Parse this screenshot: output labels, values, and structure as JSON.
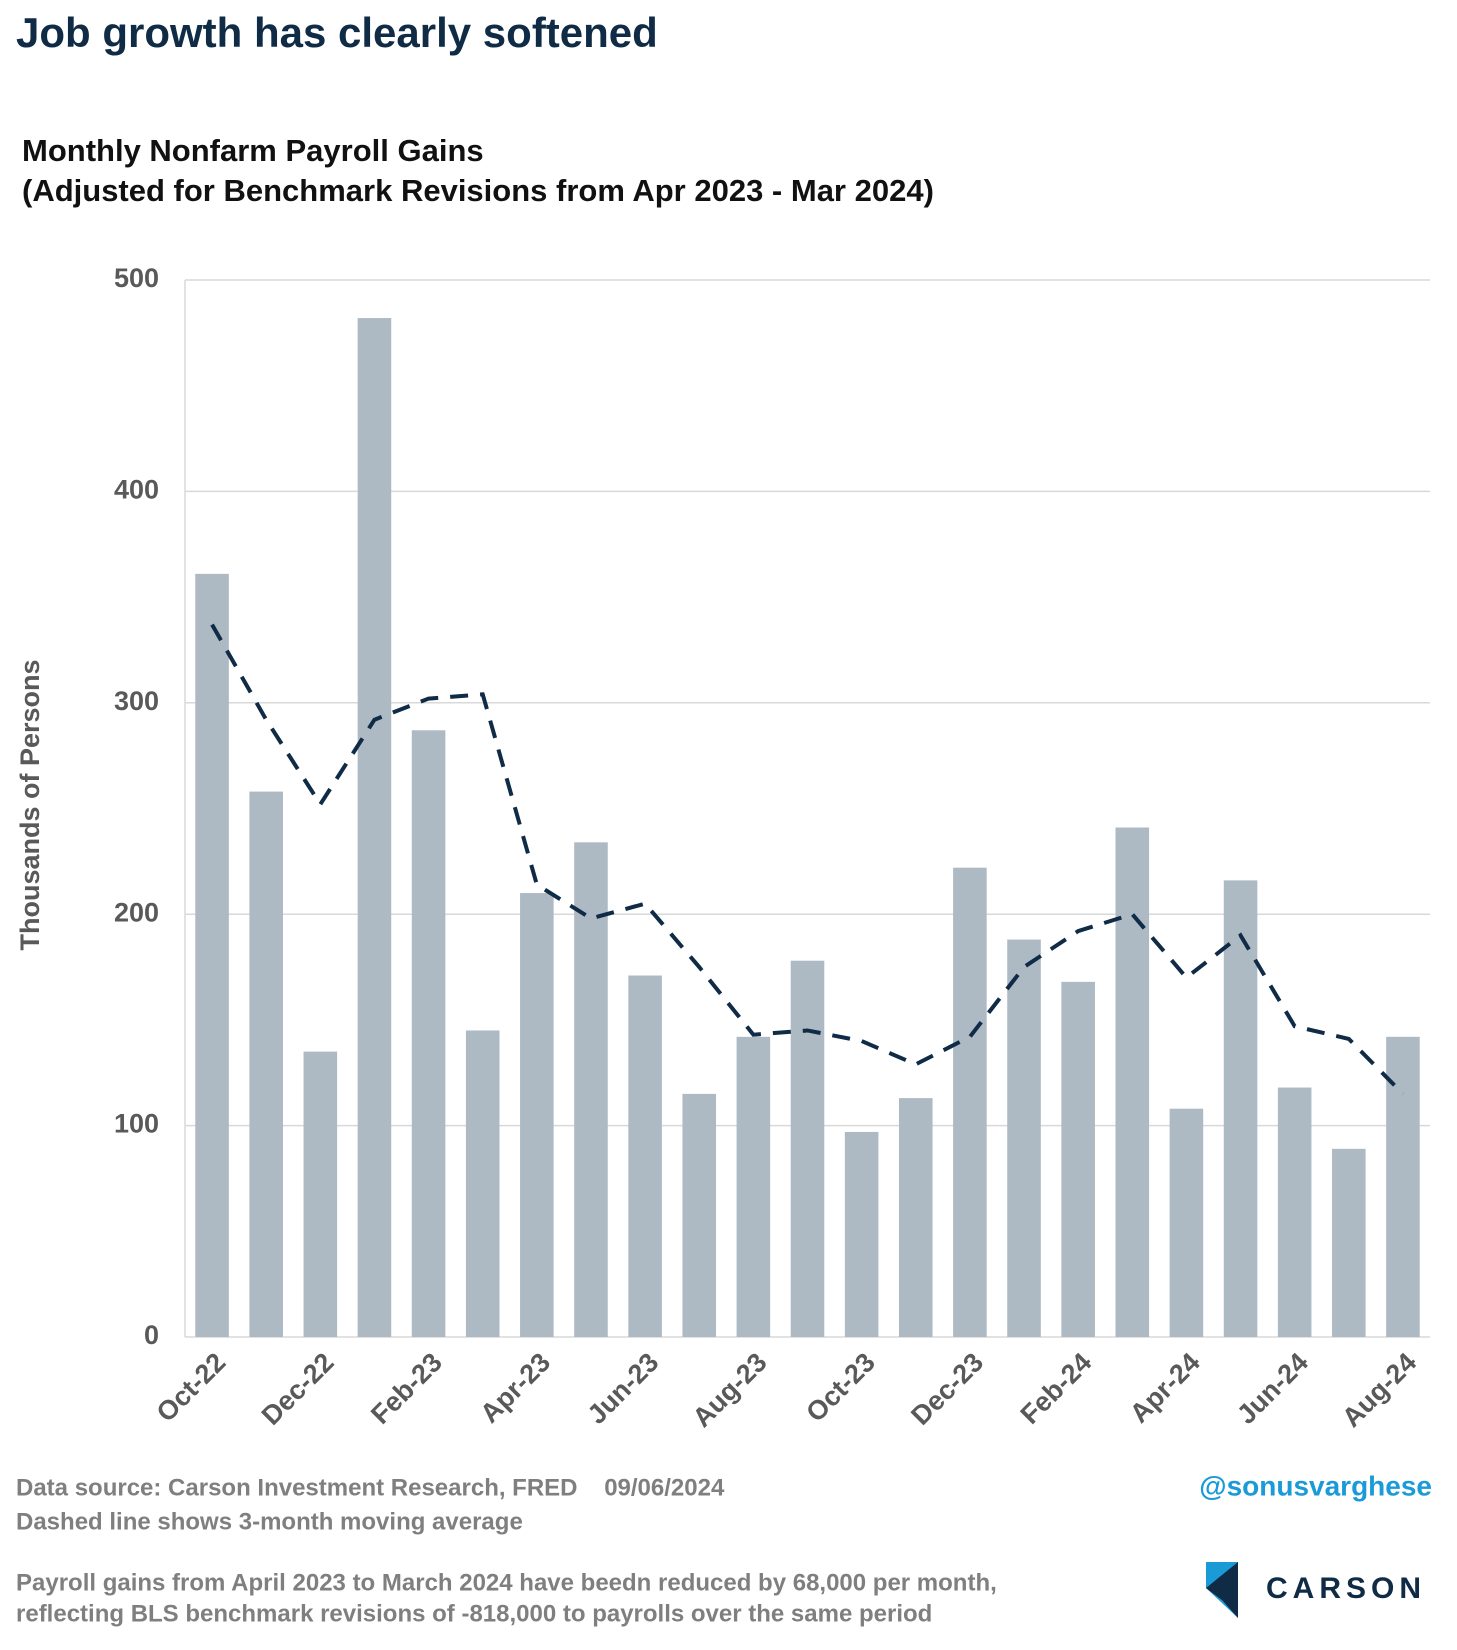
{
  "chart_data": {
    "type": "bar",
    "title": "Job growth has clearly softened",
    "subtitle": [
      "Monthly Nonfarm Payroll Gains",
      "(Adjusted for Benchmark Revisions from Apr 2023 - Mar 2024)"
    ],
    "ylabel": "Thousands of Persons",
    "categories": [
      "Oct-22",
      null,
      "Dec-22",
      null,
      "Feb-23",
      null,
      "Apr-23",
      null,
      "Jun-23",
      null,
      "Aug-23",
      null,
      "Oct-23",
      null,
      "Dec-23",
      null,
      "Feb-24",
      null,
      "Apr-24",
      null,
      "Jun-24",
      null,
      "Aug-24"
    ],
    "series": [
      {
        "type": "bar",
        "color": "#adb9c3",
        "values": [
          361,
          258,
          135,
          482,
          287,
          145,
          210,
          234,
          171,
          115,
          142,
          178,
          97,
          113,
          222,
          188,
          168,
          241,
          108,
          216,
          118,
          89,
          142
        ]
      },
      {
        "type": "line",
        "color": "#0f2b46",
        "dashed": true,
        "values": [
          337,
          292,
          252,
          292,
          302,
          304,
          214,
          198,
          205,
          175,
          143,
          145,
          140,
          129,
          142,
          175,
          192,
          200,
          170,
          190,
          147,
          141,
          115
        ]
      }
    ],
    "ylim": [
      0,
      500
    ],
    "yticks": [
      0,
      100,
      200,
      300,
      400,
      500
    ],
    "grid": true,
    "source": "Data source: Carson Investment Research, FRED    09/06/2024",
    "note": "Dashed line shows 3-month moving average",
    "footnote": [
      "Payroll gains from April 2023 to March 2024 have beedn reduced by 68,000 per month,",
      "reflecting BLS benchmark revisions of -818,000 to payrolls over the same period"
    ],
    "handle": "@sonusvarghese",
    "brand": "CARSON"
  }
}
